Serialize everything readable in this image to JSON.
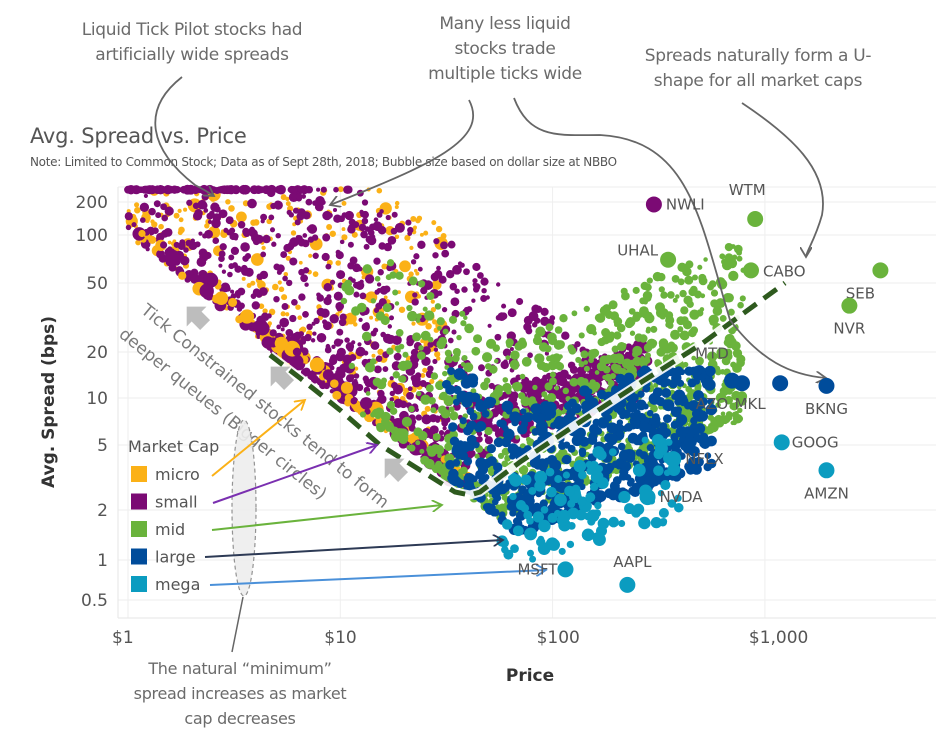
{
  "annotations": {
    "tick_pilot": [
      "Liquid Tick Pilot stocks had",
      "artificially wide spreads"
    ],
    "multiple_ticks": [
      "Many less liquid",
      "stocks trade",
      "multiple ticks wide"
    ],
    "u_shape": [
      "Spreads naturally form a U-",
      "shape for all market caps"
    ],
    "min_spread": [
      "The natural “minimum”",
      "spread increases as market",
      "cap decreases"
    ],
    "tick_constrained": [
      "Tick Constrained stocks tend to form",
      "deeper queues (Bigger circles)"
    ]
  },
  "chart_data": {
    "type": "scatter",
    "title": "Avg. Spread vs. Price",
    "subtitle": "Note: Limited to Common Stock; Data as of Sept 28th, 2018; Bubble size based on dollar size at NBBO",
    "xlabel": "Price",
    "ylabel": "Avg. Spread (bps)",
    "x_scale": "log",
    "y_scale": "log",
    "xlim": [
      0.85,
      5000
    ],
    "x_ticks": [
      {
        "value": 1,
        "label": "$1"
      },
      {
        "value": 10,
        "label": "$10"
      },
      {
        "value": 100,
        "label": "$100"
      },
      {
        "value": 1000,
        "label": "$1,000"
      }
    ],
    "y_ticks": [
      {
        "value": 200,
        "label": "200"
      },
      {
        "value": 100,
        "label": "100"
      },
      {
        "value": 50,
        "label": "50"
      },
      {
        "value": 20,
        "label": "20"
      },
      {
        "value": 10,
        "label": "10"
      },
      {
        "value": 5,
        "label": "5"
      },
      {
        "value": 2,
        "label": "2"
      },
      {
        "value": 1,
        "label": "1"
      },
      {
        "value": 0.5,
        "label": "0.5"
      }
    ],
    "grid": true,
    "legend": {
      "title": "Market Cap",
      "placement": "bottom-left",
      "items": [
        {
          "name": "micro",
          "color": "#FBB117"
        },
        {
          "name": "small",
          "color": "#7B0A74"
        },
        {
          "name": "mid",
          "color": "#6AB33C"
        },
        {
          "name": "large",
          "color": "#004C9B"
        },
        {
          "name": "mega",
          "color": "#0B9CC0"
        }
      ]
    },
    "labeled_points": [
      {
        "ticker": "NWLI",
        "price": 300,
        "spread": 190,
        "cap": "small"
      },
      {
        "ticker": "UHAL",
        "price": 350,
        "spread": 70,
        "cap": "mid"
      },
      {
        "ticker": "WTM",
        "price": 900,
        "spread": 140,
        "cap": "mid"
      },
      {
        "ticker": "CABO",
        "price": 860,
        "spread": 60,
        "cap": "mid"
      },
      {
        "ticker": "SEB",
        "price": 3500,
        "spread": 60,
        "cap": "mid"
      },
      {
        "ticker": "NVR",
        "price": 2500,
        "spread": 37,
        "cap": "mid"
      },
      {
        "ticker": "MTD",
        "price": 700,
        "spread": 13,
        "cap": "large"
      },
      {
        "ticker": "AZO",
        "price": 780,
        "spread": 12.5,
        "cap": "large"
      },
      {
        "ticker": "MKL",
        "price": 1180,
        "spread": 12.5,
        "cap": "large"
      },
      {
        "ticker": "BKNG",
        "price": 1950,
        "spread": 12,
        "cap": "large"
      },
      {
        "ticker": "GOOG",
        "price": 1200,
        "spread": 5.2,
        "cap": "mega"
      },
      {
        "ticker": "AMZN",
        "price": 1950,
        "spread": 3.5,
        "cap": "mega"
      },
      {
        "ticker": "NFLX",
        "price": 370,
        "spread": 4.1,
        "cap": "mega"
      },
      {
        "ticker": "NVDA",
        "price": 280,
        "spread": 2.4,
        "cap": "mega"
      },
      {
        "ticker": "AAPL",
        "price": 225,
        "spread": 0.65,
        "cap": "mega"
      },
      {
        "ticker": "MSFT",
        "price": 115,
        "spread": 0.85,
        "cap": "mega"
      }
    ],
    "bands": [
      {
        "cap": "micro",
        "description": "min spread ~ 1 tick; concentrated price $1-$30, spread 20-250 bps"
      },
      {
        "cap": "small",
        "description": "price $1-$300, spread 3-250 bps"
      },
      {
        "cap": "mid",
        "description": "price $5-$900, spread 1.5-150 bps"
      },
      {
        "cap": "large",
        "description": "price $30-$2000, spread 1-15 bps"
      },
      {
        "cap": "mega",
        "description": "price $50-$2000, spread 0.6-6 bps"
      }
    ]
  }
}
